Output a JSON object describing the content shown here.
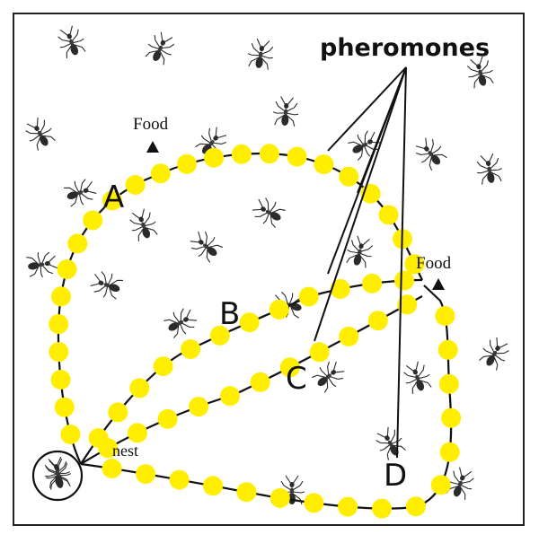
{
  "diagram": {
    "annotation": "pheromones",
    "path_labels": {
      "a": "A",
      "b": "B",
      "c": "C",
      "d": "D"
    },
    "food_label": "Food",
    "nest_label": "nest",
    "colors": {
      "pheromone": "#ffee00",
      "path_line": "#111111",
      "ant": "#2b2b2b",
      "frame": "#222222"
    },
    "icons": [
      "ant-icon",
      "food-marker-icon",
      "nest-circle"
    ]
  }
}
